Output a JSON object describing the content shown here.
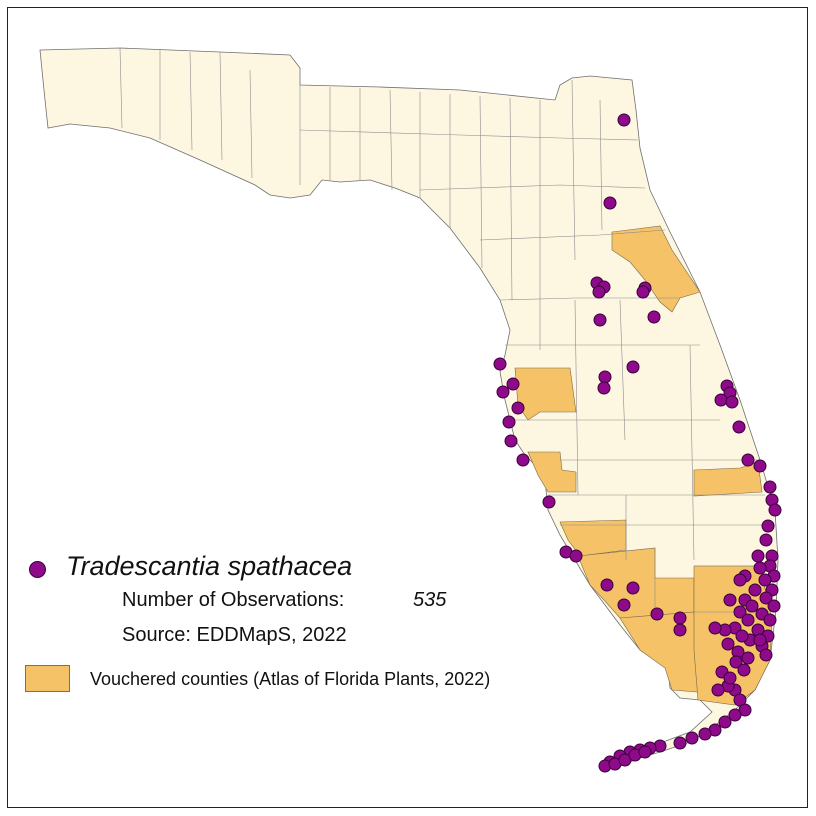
{
  "legend": {
    "species": "Tradescantia spathacea",
    "observations_label": "Number of Observations:",
    "observations_value": "535",
    "source": "Source: EDDMapS, 2022",
    "vouchered_label": "Vouchered counties (Atlas of Florida Plants, 2022)"
  },
  "colors": {
    "land": "#fdf6e1",
    "county_border": "#8c8c8c",
    "vouchered": "#f5c267",
    "observation": "#8e0a8a",
    "observation_outline": "#3a003a"
  },
  "vouchered_counties": [
    "Volusia",
    "Pasco",
    "Manatee",
    "Charlotte",
    "Indian River",
    "Lee",
    "Collier",
    "Broward",
    "Monroe",
    "Miami-Dade"
  ]
}
